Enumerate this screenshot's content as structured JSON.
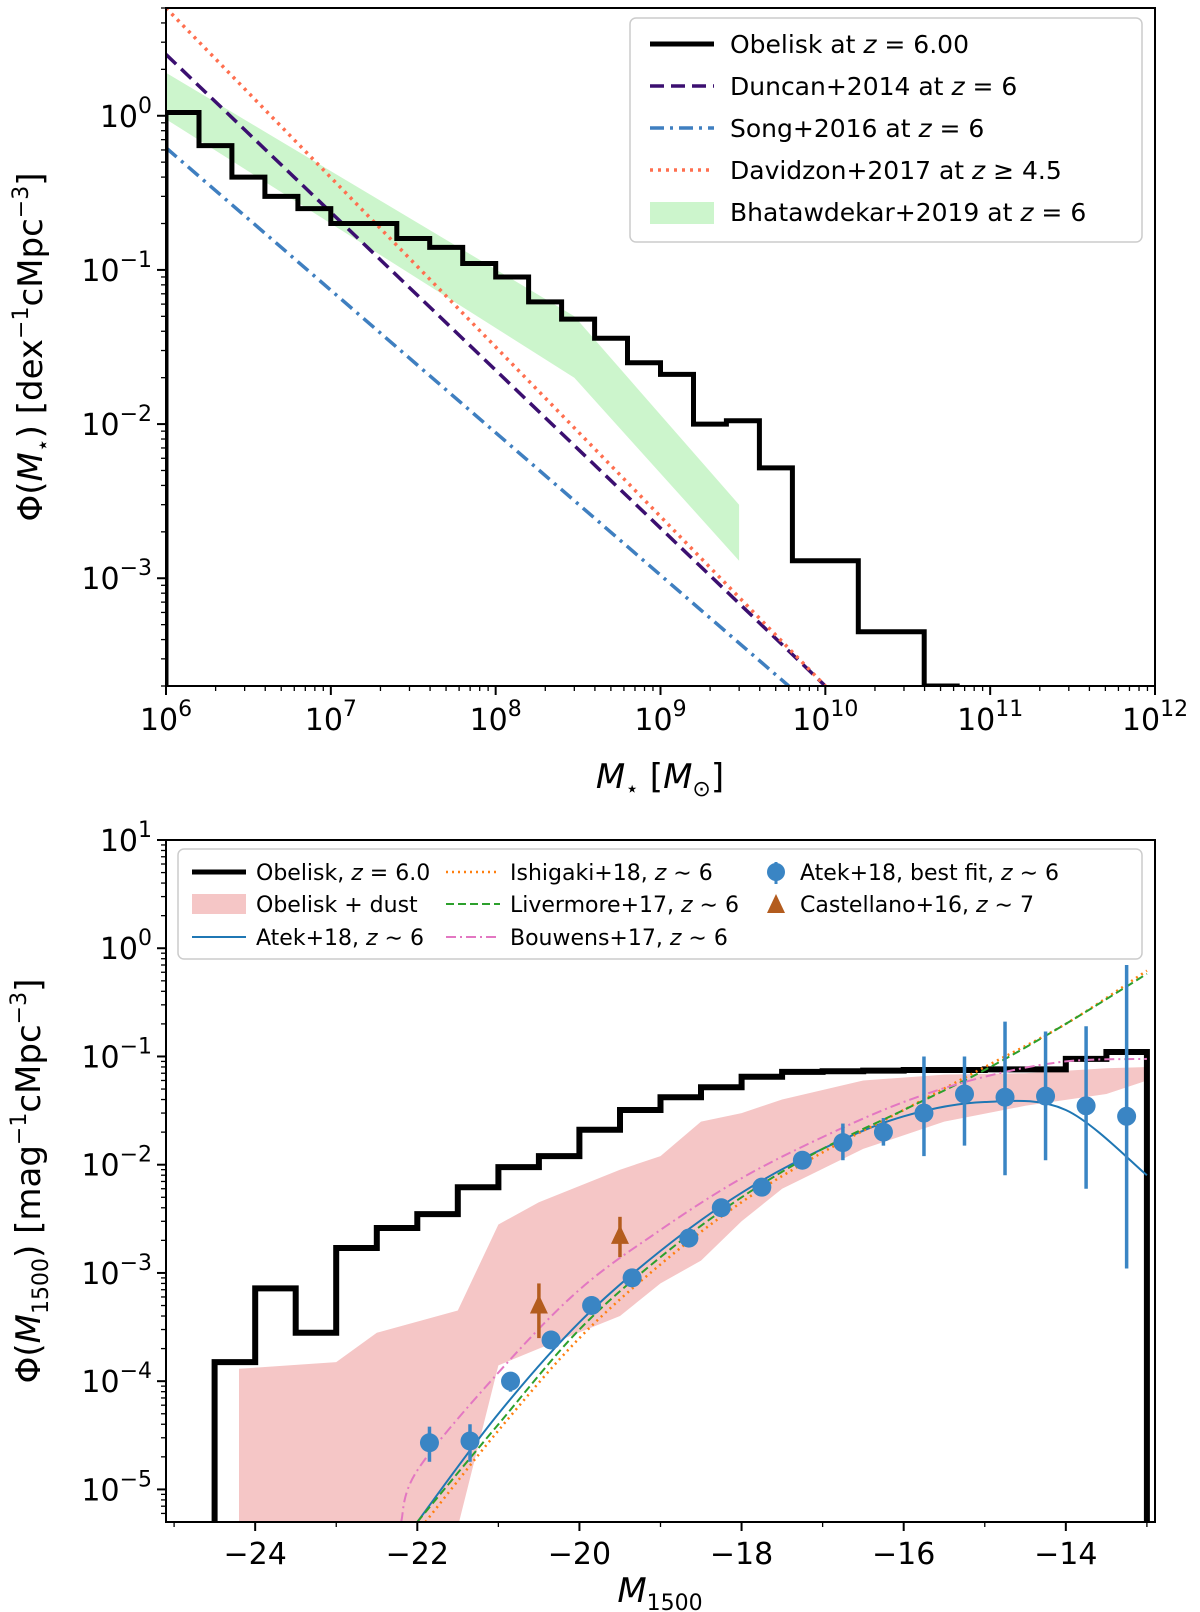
{
  "chart_data": [
    {
      "type": "line",
      "xscale": "log",
      "yscale": "log",
      "xlim": [
        1000000.0,
        1000000000000.0
      ],
      "ylim": [
        0.0002,
        5
      ],
      "xlabel": "M⋆ [M⊙]",
      "ylabel": "Φ(M⋆) [dex⁻¹cMpc⁻³]",
      "x_ticks": [
        {
          "value": 1000000.0,
          "label_base": "10",
          "label_exp": "6"
        },
        {
          "value": 10000000.0,
          "label_base": "10",
          "label_exp": "7"
        },
        {
          "value": 100000000.0,
          "label_base": "10",
          "label_exp": "8"
        },
        {
          "value": 1000000000.0,
          "label_base": "10",
          "label_exp": "9"
        },
        {
          "value": 10000000000.0,
          "label_base": "10",
          "label_exp": "10"
        },
        {
          "value": 100000000000.0,
          "label_base": "10",
          "label_exp": "11"
        },
        {
          "value": 1000000000000.0,
          "label_base": "10",
          "label_exp": "12"
        }
      ],
      "y_ticks": [
        {
          "value": 1,
          "label_base": "10",
          "label_exp": "0"
        },
        {
          "value": 0.1,
          "label_base": "10",
          "label_exp": "−1"
        },
        {
          "value": 0.01,
          "label_base": "10",
          "label_exp": "−2"
        },
        {
          "value": 0.001,
          "label_base": "10",
          "label_exp": "−3"
        }
      ],
      "legend_position": "top-right",
      "series": [
        {
          "name": "Obelisk at z = 6.00",
          "style": "step",
          "color": "#000000",
          "edges_log10": [
            6.0,
            6.2,
            6.4,
            6.6,
            6.8,
            7.0,
            7.2,
            7.4,
            7.6,
            7.8,
            8.0,
            8.2,
            8.4,
            8.6,
            8.8,
            9.0,
            9.2,
            9.4,
            9.6,
            9.8,
            10.0,
            10.2,
            10.4,
            10.6,
            10.8
          ],
          "values": [
            1.05,
            0.64,
            0.4,
            0.3,
            0.25,
            0.2,
            0.2,
            0.16,
            0.14,
            0.11,
            0.09,
            0.062,
            0.048,
            0.036,
            0.025,
            0.021,
            0.01,
            0.0105,
            0.0052,
            0.0013,
            0.0013,
            0.00045,
            0.00045,
            0.0002
          ]
        },
        {
          "name": "Duncan+2014 at z = 6",
          "style": "dashed",
          "color": "#3b0f70",
          "x": [
            1000000.0,
            10000000000.0
          ],
          "y": [
            2.5,
            0.0002
          ]
        },
        {
          "name": "Song+2016 at z = 6",
          "style": "dashdot",
          "color": "#3f7fc0",
          "x": [
            1000000.0,
            6000000000.0
          ],
          "y": [
            0.62,
            0.0002
          ]
        },
        {
          "name": "Davidzon+2017 at z ≥ 4.5",
          "style": "dotted",
          "color": "#ff6f4f",
          "x": [
            1000000.0,
            10000000000.0
          ],
          "y": [
            5.0,
            0.0002
          ]
        },
        {
          "name": "Bhatawdekar+2019 at z = 6",
          "style": "band",
          "color": "#ccf5cc",
          "x": [
            1000000.0,
            300000000.0,
            3000000000.0
          ],
          "upper": [
            1.9,
            0.05,
            0.003
          ],
          "lower": [
            0.95,
            0.02,
            0.0013
          ]
        }
      ]
    },
    {
      "type": "line",
      "yscale": "log",
      "xlim": [
        -25.1,
        -12.9
      ],
      "ylim": [
        5e-06,
        10
      ],
      "xlabel": "M1500",
      "ylabel": "Φ(M1500) [mag⁻¹cMpc⁻³]",
      "x_ticks": [
        {
          "value": -24,
          "label": "−24"
        },
        {
          "value": -22,
          "label": "−22"
        },
        {
          "value": -20,
          "label": "−20"
        },
        {
          "value": -18,
          "label": "−18"
        },
        {
          "value": -16,
          "label": "−16"
        },
        {
          "value": -14,
          "label": "−14"
        }
      ],
      "y_ticks": [
        {
          "value": 10,
          "label_base": "10",
          "label_exp": "1"
        },
        {
          "value": 1,
          "label_base": "10",
          "label_exp": "0"
        },
        {
          "value": 0.1,
          "label_base": "10",
          "label_exp": "−1"
        },
        {
          "value": 0.01,
          "label_base": "10",
          "label_exp": "−2"
        },
        {
          "value": 0.001,
          "label_base": "10",
          "label_exp": "−3"
        },
        {
          "value": 0.0001,
          "label_base": "10",
          "label_exp": "−4"
        },
        {
          "value": 1e-05,
          "label_base": "10",
          "label_exp": "−5"
        }
      ],
      "legend_position": "top",
      "series": [
        {
          "name": "Obelisk, z = 6.0",
          "style": "step",
          "color": "#000000",
          "edges": [
            -24.5,
            -24.0,
            -23.5,
            -23.0,
            -22.5,
            -22.0,
            -21.5,
            -21.0,
            -20.5,
            -20.0,
            -19.5,
            -19.0,
            -18.5,
            -18.0,
            -17.5,
            -17.0,
            -16.5,
            -16.0,
            -15.5,
            -15.0,
            -14.5,
            -14.0,
            -13.5,
            -13.0
          ],
          "values": [
            0.00015,
            0.00072,
            0.00028,
            0.0017,
            0.0026,
            0.0035,
            0.0062,
            0.0095,
            0.012,
            0.021,
            0.032,
            0.042,
            0.052,
            0.065,
            0.072,
            0.073,
            0.074,
            0.075,
            0.075,
            0.076,
            0.076,
            0.095,
            0.11
          ]
        },
        {
          "name": "Obelisk + dust",
          "style": "band",
          "color": "#f5c6c6",
          "x": [
            -24.2,
            -23.0,
            -22.5,
            -21.5,
            -21.0,
            -20.5,
            -19.5,
            -19.0,
            -18.5,
            -18.0,
            -17.5,
            -16.5,
            -15.5,
            -14.5,
            -13.5,
            -13.0
          ],
          "upper": [
            0.00013,
            0.00015,
            0.00028,
            0.00045,
            0.0028,
            0.0045,
            0.009,
            0.012,
            0.025,
            0.03,
            0.04,
            0.06,
            0.068,
            0.07,
            0.078,
            0.08
          ],
          "lower": [
            5e-06,
            5e-06,
            5e-06,
            5e-06,
            0.00014,
            0.0002,
            0.0004,
            0.0008,
            0.0013,
            0.003,
            0.006,
            0.014,
            0.025,
            0.035,
            0.045,
            0.06
          ]
        },
        {
          "name": "Atek+18, z ∼ 6",
          "style": "solid",
          "color": "#1f77b4",
          "x": [
            -22.0,
            -21.0,
            -20.0,
            -19.0,
            -18.0,
            -17.0,
            -16.0,
            -15.0,
            -14.0,
            -13.0
          ],
          "y": [
            5e-06,
            5e-05,
            0.00035,
            0.0016,
            0.0055,
            0.014,
            0.028,
            0.038,
            0.032,
            0.008
          ]
        },
        {
          "name": "Ishigaki+18, z ∼ 6",
          "style": "dotted",
          "color": "#ff7f0e",
          "x": [
            -21.9,
            -21.0,
            -20.0,
            -19.0,
            -18.0,
            -17.0,
            -16.0,
            -15.0,
            -14.0,
            -13.0
          ],
          "y": [
            5e-06,
            3.5e-05,
            0.00025,
            0.0012,
            0.0045,
            0.013,
            0.032,
            0.08,
            0.2,
            0.62
          ]
        },
        {
          "name": "Livermore+17, z ∼ 6",
          "style": "dashed",
          "color": "#2ca02c",
          "x": [
            -22.0,
            -21.0,
            -20.0,
            -19.0,
            -18.0,
            -17.0,
            -16.0,
            -15.0,
            -14.0,
            -13.0
          ],
          "y": [
            5e-06,
            4e-05,
            0.0003,
            0.0014,
            0.005,
            0.014,
            0.032,
            0.075,
            0.2,
            0.58
          ]
        },
        {
          "name": "Bouwens+17, z ∼ 6",
          "style": "dashdot",
          "color": "#e377c2",
          "x": [
            -22.2,
            -22.0,
            -21.0,
            -20.0,
            -19.0,
            -18.0,
            -17.0,
            -16.0,
            -15.0,
            -14.0,
            -13.0
          ],
          "y": [
            5e-06,
            1.5e-05,
            0.00012,
            0.0007,
            0.0025,
            0.0075,
            0.018,
            0.038,
            0.065,
            0.09,
            0.095
          ]
        },
        {
          "name": "Atek+18, best fit, z ∼ 6",
          "style": "errorbar",
          "color": "#3a85c4",
          "x": [
            -21.85,
            -21.35,
            -20.85,
            -20.35,
            -19.85,
            -19.35,
            -18.65,
            -18.25,
            -17.75,
            -17.25,
            -16.75,
            -16.25,
            -15.75,
            -15.25,
            -14.75,
            -14.25,
            -13.75,
            -13.25
          ],
          "y": [
            2.7e-05,
            2.8e-05,
            0.0001,
            0.00024,
            0.0005,
            0.0009,
            0.0021,
            0.004,
            0.0062,
            0.011,
            0.016,
            0.02,
            0.03,
            0.045,
            0.042,
            0.043,
            0.035,
            0.028
          ],
          "y_low": [
            1.8e-05,
            1.8e-05,
            8e-05,
            0.0002,
            0.00043,
            0.00078,
            0.0018,
            0.0034,
            0.0053,
            0.0095,
            0.011,
            0.015,
            0.012,
            0.015,
            0.008,
            0.011,
            0.006,
            0.0011
          ],
          "y_high": [
            3.8e-05,
            4e-05,
            0.00012,
            0.00028,
            0.00058,
            0.00104,
            0.0024,
            0.0046,
            0.0071,
            0.0127,
            0.024,
            0.027,
            0.1,
            0.1,
            0.21,
            0.17,
            0.19,
            0.7
          ]
        },
        {
          "name": "Castellano+16, z ∼ 7",
          "style": "triangle-errorbar",
          "color": "#b35c1e",
          "x": [
            -20.5,
            -19.5
          ],
          "y": [
            0.0005,
            0.0022
          ],
          "y_low": [
            0.00025,
            0.0014
          ],
          "y_high": [
            0.0008,
            0.0033
          ]
        }
      ]
    }
  ]
}
